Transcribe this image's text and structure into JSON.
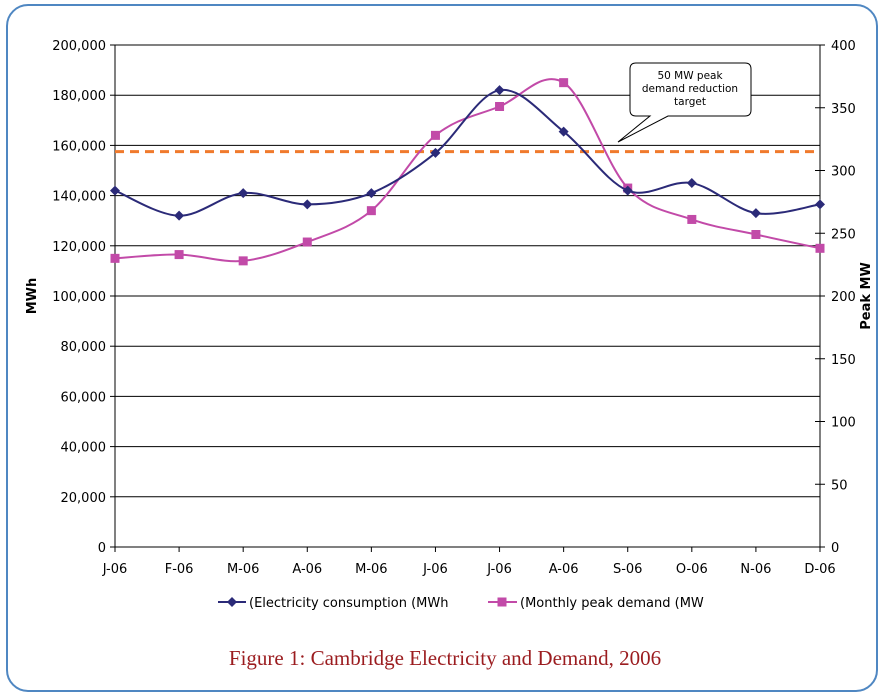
{
  "caption": "Figure 1: Cambridge Electricity and Demand, 2006",
  "colors": {
    "frame": "#4f87c2",
    "series1": "#2b2a78",
    "series2": "#c24aa8",
    "target_line": "#f07a2c",
    "caption": "#9b1c1f"
  },
  "chart_data": {
    "type": "line",
    "categories": [
      "J-06",
      "F-06",
      "M-06",
      "A-06",
      "M-06",
      "J-06",
      "J-06",
      "A-06",
      "S-06",
      "O-06",
      "N-06",
      "D-06"
    ],
    "series": [
      {
        "name": "(Electricity consumption (MWh",
        "axis": "left",
        "marker": "diamond",
        "values": [
          142000,
          132000,
          141000,
          136500,
          141000,
          157000,
          182000,
          165500,
          142000,
          145000,
          133000,
          136500
        ]
      },
      {
        "name": "(Monthly peak demand (MW",
        "axis": "right",
        "marker": "square",
        "values": [
          230,
          233,
          228,
          243,
          268,
          328,
          351,
          370,
          286,
          261,
          249,
          238
        ]
      }
    ],
    "ylabel": "MWh",
    "y2label": "Peak MW",
    "ylim": [
      0,
      200000
    ],
    "y2lim": [
      0,
      400
    ],
    "yticks": [
      "0",
      "20,000",
      "40,000",
      "60,000",
      "80,000",
      "100,000",
      "120,000",
      "140,000",
      "160,000",
      "180,000",
      "200,000"
    ],
    "y2ticks": [
      "0",
      "50",
      "100",
      "150",
      "200",
      "250",
      "300",
      "350",
      "400"
    ],
    "target_line": {
      "y2_value": 315
    },
    "annotation": [
      "50 MW peak",
      "demand reduction",
      "target"
    ],
    "grid": true,
    "legend_position": "bottom"
  }
}
